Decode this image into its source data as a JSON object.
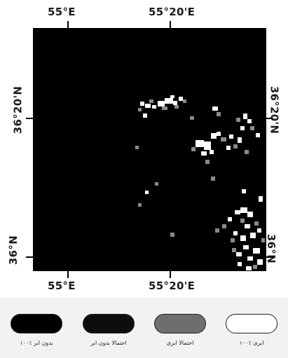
{
  "map": {
    "top_lon_labels": [
      "55°E",
      "55°20'E"
    ],
    "bottom_lon_labels": [
      "55°E",
      "55°20'E"
    ],
    "left_lat_labels": [
      "36°20'N",
      "36°N"
    ],
    "right_lat_labels": [
      "36°20'N",
      "36°N"
    ],
    "background_color": "#000000",
    "cloud_color": "#ffffff",
    "probable_cloud_color": "#8a8a8a"
  },
  "legend": {
    "items": [
      {
        "label": "۱۰۰٪ بدون ابر",
        "fill": "#000000"
      },
      {
        "label": "احتمالا بدون ابر",
        "fill": "#0d0d0d"
      },
      {
        "label": "احتمالا ابری",
        "fill": "#6e6e6e"
      },
      {
        "label": "۱۰۰٪ ابری",
        "fill": "#ffffff"
      }
    ]
  }
}
